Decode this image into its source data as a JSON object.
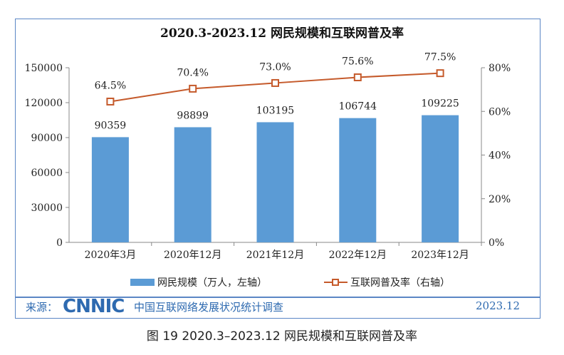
{
  "chart_data": {
    "type": "bar+line",
    "title": "2020.3-2023.12 网民规模和互联网普及率",
    "categories": [
      "2020年3月",
      "2020年12月",
      "2021年12月",
      "2022年12月",
      "2023年12月"
    ],
    "series": [
      {
        "name": "网民规模（万人，左轴）",
        "type": "bar",
        "axis": "left",
        "values": [
          90359,
          98899,
          103195,
          106744,
          109225
        ],
        "labels": [
          "90359",
          "98899",
          "103195",
          "106744",
          "109225"
        ],
        "color": "#5b9bd5"
      },
      {
        "name": "互联网普及率（右轴）",
        "type": "line",
        "axis": "right",
        "values": [
          64.5,
          70.4,
          73.0,
          75.6,
          77.5
        ],
        "labels": [
          "64.5%",
          "70.4%",
          "73.0%",
          "75.6%",
          "77.5%"
        ],
        "color": "#c55a2b"
      }
    ],
    "ylim": [
      0,
      150000
    ],
    "yticks": [
      "0",
      "30000",
      "60000",
      "90000",
      "120000",
      "150000"
    ],
    "y2lim": [
      0,
      80
    ],
    "y2ticks": [
      "0%",
      "20%",
      "40%",
      "60%",
      "80%"
    ],
    "legend": "bottom"
  },
  "footer": {
    "source_label": "来源：",
    "logo": "CNNIC",
    "source_name": "中国互联网络发展状况统计调查",
    "date": "2023.12"
  },
  "caption": "图 19  2020.3–2023.12 网民规模和互联网普及率"
}
